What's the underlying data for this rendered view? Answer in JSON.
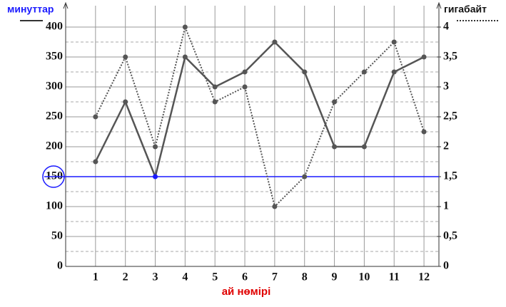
{
  "chart_data": {
    "type": "line",
    "x": [
      1,
      2,
      3,
      4,
      5,
      6,
      7,
      8,
      9,
      10,
      11,
      12
    ],
    "xlabel": "ай нөмірі",
    "xlim": [
      0,
      12.5
    ],
    "xticks": [
      1,
      2,
      3,
      4,
      5,
      6,
      7,
      8,
      9,
      10,
      11,
      12
    ],
    "ylim": [
      0,
      400
    ],
    "yticks": [
      0,
      50,
      100,
      150,
      200,
      250,
      300,
      350,
      400
    ],
    "y2lim": [
      0,
      4
    ],
    "y2ticks": [
      0,
      {
        "value": 0.5,
        "label": "0,5"
      },
      1,
      {
        "value": 1.5,
        "label": "1,5"
      },
      2,
      {
        "value": 2.5,
        "label": "2,5"
      },
      3,
      {
        "value": 3.5,
        "label": "3,5"
      },
      4
    ],
    "grid": true,
    "highlight": {
      "y": 150,
      "color": "#1a1aff"
    },
    "series": [
      {
        "name": "минуттар",
        "color": "#555555",
        "style": "solid",
        "values": [
          175,
          275,
          150,
          350,
          300,
          325,
          375,
          325,
          200,
          200,
          325,
          350
        ]
      },
      {
        "name": "гигабайт",
        "color": "#555555",
        "style": "dotted",
        "axis": "y2",
        "values": [
          2.5,
          3.5,
          2,
          4,
          2.75,
          3,
          1,
          1.5,
          2.75,
          3.25,
          3.75,
          2.25
        ]
      }
    ]
  }
}
